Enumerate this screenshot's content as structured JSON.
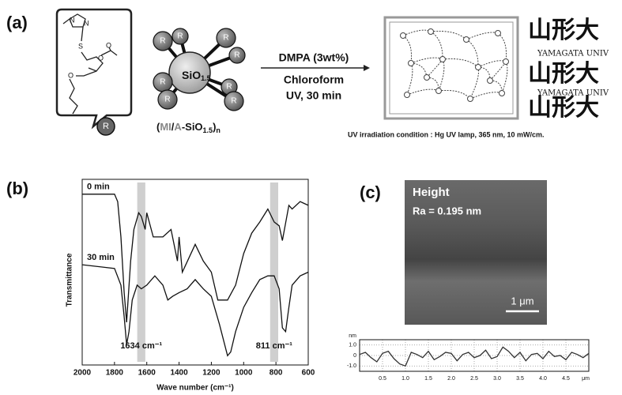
{
  "panel_a": {
    "label": "(a)",
    "monomer_atoms": [
      "N",
      "N",
      "S",
      "O",
      "O",
      "O"
    ],
    "R": "R",
    "core": [
      "SiO",
      "1.5"
    ],
    "polymer": [
      "(",
      "MI",
      "/",
      "A",
      "-SiO",
      "1.5",
      ")",
      "n"
    ],
    "conditions": [
      "DMPA (3wt%)",
      "Chloroform",
      "UV, 30 min"
    ],
    "stamp": [
      "山形大",
      "YAMAGATA UNIV"
    ],
    "irradiation": "UV irradiation condition : Hg UV lamp, 365 nm, 10 mW/cm."
  },
  "panel_b": {
    "label": "(b)"
  },
  "panel_c": {
    "label": "(c)",
    "image_title": "Height",
    "roughness": "Ra = 0.195 nm",
    "scale_bar": "1 μm"
  },
  "chart_data": [
    {
      "type": "line",
      "xlabel": "Wave number (cm⁻¹)",
      "ylabel": "Transmittance",
      "xlim": [
        2000,
        600
      ],
      "xticks": [
        2000,
        1800,
        1600,
        1400,
        1200,
        1000,
        800,
        600
      ],
      "ylim": [
        0,
        100
      ],
      "grid": false,
      "bands": [
        {
          "x": 1634,
          "width": 50,
          "label": "1634 cm⁻¹"
        },
        {
          "x": 811,
          "width": 50,
          "label": "811 cm⁻¹"
        }
      ],
      "series": [
        {
          "name": "0 min",
          "color": "#111111",
          "x": [
            2000,
            1900,
            1800,
            1780,
            1760,
            1740,
            1725,
            1700,
            1680,
            1650,
            1634,
            1610,
            1600,
            1560,
            1500,
            1450,
            1410,
            1400,
            1380,
            1300,
            1250,
            1200,
            1160,
            1100,
            1050,
            1000,
            950,
            900,
            850,
            811,
            780,
            760,
            720,
            700,
            650,
            600
          ],
          "values": [
            92,
            92,
            92,
            88,
            69,
            39,
            23,
            56,
            73,
            82,
            80,
            73,
            82,
            69,
            69,
            73,
            56,
            69,
            50,
            65,
            56,
            50,
            35,
            35,
            43,
            60,
            71,
            77,
            84,
            77,
            75,
            67,
            86,
            84,
            88,
            86
          ]
        },
        {
          "name": "30 min",
          "color": "#111111",
          "x": [
            2000,
            1800,
            1760,
            1740,
            1725,
            1710,
            1690,
            1660,
            1634,
            1600,
            1550,
            1500,
            1470,
            1440,
            1400,
            1350,
            1300,
            1250,
            1200,
            1150,
            1100,
            1080,
            1050,
            1000,
            950,
            900,
            850,
            811,
            780,
            760,
            740,
            720,
            700,
            650,
            600
          ],
          "values": [
            54,
            52,
            43,
            26,
            11,
            18,
            35,
            43,
            41,
            43,
            48,
            43,
            35,
            37,
            39,
            41,
            46,
            41,
            37,
            22,
            5,
            7,
            18,
            31,
            39,
            46,
            48,
            48,
            41,
            20,
            18,
            31,
            43,
            48,
            50
          ]
        }
      ]
    },
    {
      "type": "line",
      "x_unit": "μm",
      "y_unit": "nm",
      "xlim": [
        0,
        5
      ],
      "xticks": [
        0.5,
        {
          "value": 1,
          "label": "1.0"
        },
        1.5,
        {
          "value": 2,
          "label": "2.0"
        },
        2.5,
        {
          "value": 3,
          "label": "3.0"
        },
        3.5,
        {
          "value": 4,
          "label": "4.0"
        },
        4.5
      ],
      "ylim": [
        -1.5,
        1.5
      ],
      "yticks": [
        {
          "value": 1,
          "label": "1.0"
        },
        0,
        {
          "value": -1,
          "label": "-1.0"
        }
      ],
      "grid": true,
      "series": [
        {
          "color": "#333333",
          "x": [
            0,
            0.125,
            0.25,
            0.375,
            0.5,
            0.625,
            0.75,
            0.875,
            1,
            1.125,
            1.25,
            1.375,
            1.5,
            1.625,
            1.75,
            1.875,
            2,
            2.125,
            2.25,
            2.375,
            2.5,
            2.625,
            2.75,
            2.875,
            3,
            3.125,
            3.25,
            3.375,
            3.5,
            3.625,
            3.75,
            3.875,
            4,
            4.125,
            4.25,
            4.375,
            4.5,
            4.625,
            4.75,
            4.875,
            5
          ],
          "values": [
            0.1,
            0.3,
            -0.2,
            -0.6,
            0.2,
            0.4,
            -0.3,
            -0.8,
            -1.0,
            0.3,
            0.1,
            -0.2,
            0.4,
            -0.4,
            -0.1,
            0.3,
            0.2,
            -0.5,
            0.1,
            0.3,
            -0.2,
            0.0,
            0.5,
            -0.3,
            -0.1,
            0.8,
            0.4,
            -0.2,
            0.3,
            -0.5,
            0.1,
            0.2,
            -0.3,
            0.4,
            -0.1,
            0.0,
            -0.4,
            0.3,
            0.1,
            -0.2,
            0.2
          ]
        }
      ]
    }
  ]
}
